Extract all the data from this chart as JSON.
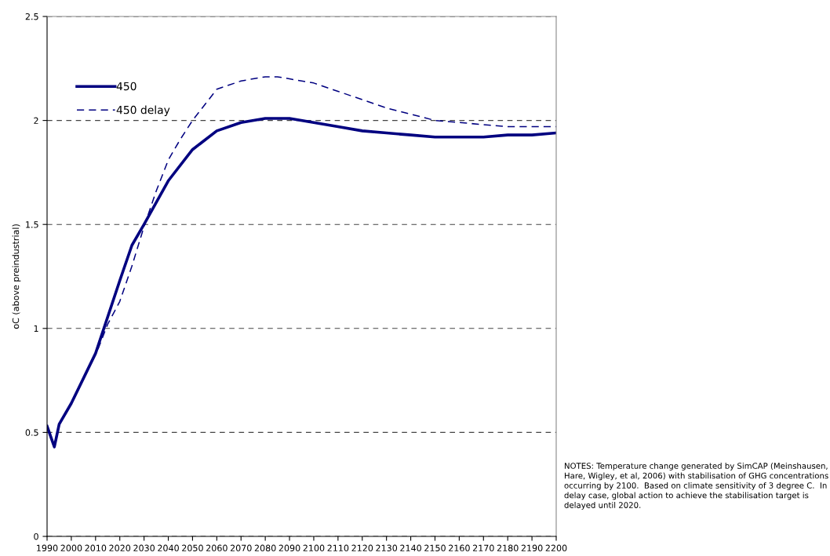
{
  "chart_data": {
    "type": "line",
    "ylabel": "oC (above preindustrial)",
    "xlim": [
      1990,
      2200
    ],
    "xticks": [
      1990,
      2000,
      2010,
      2020,
      2030,
      2040,
      2050,
      2060,
      2070,
      2080,
      2090,
      2100,
      2110,
      2120,
      2130,
      2140,
      2150,
      2160,
      2170,
      2180,
      2190,
      2200
    ],
    "ylim": [
      0,
      2.5
    ],
    "yticks": [
      0,
      0.5,
      1,
      1.5,
      2,
      2.5
    ],
    "grid": "y",
    "legend": "top left",
    "series": [
      {
        "name": "450",
        "color": "#000080",
        "line_style": "solid",
        "x": [
          1990,
          1993,
          1995,
          2000,
          2010,
          2020,
          2025,
          2030,
          2040,
          2050,
          2060,
          2070,
          2080,
          2090,
          2100,
          2110,
          2120,
          2130,
          2140,
          2150,
          2160,
          2170,
          2180,
          2190,
          2200
        ],
        "values": [
          0.53,
          0.43,
          0.54,
          0.64,
          0.88,
          1.23,
          1.4,
          1.5,
          1.71,
          1.86,
          1.95,
          1.99,
          2.01,
          2.01,
          1.99,
          1.97,
          1.95,
          1.94,
          1.93,
          1.92,
          1.92,
          1.92,
          1.93,
          1.93,
          1.94
        ]
      },
      {
        "name": "450 delay",
        "color": "#000080",
        "line_style": "dashed",
        "x": [
          2011,
          2015,
          2020,
          2025,
          2030,
          2035,
          2040,
          2045,
          2050,
          2060,
          2070,
          2080,
          2085,
          2090,
          2100,
          2110,
          2120,
          2130,
          2140,
          2150,
          2160,
          2170,
          2180,
          2190,
          2200
        ],
        "values": [
          0.9,
          1.02,
          1.13,
          1.3,
          1.49,
          1.66,
          1.81,
          1.91,
          2.0,
          2.15,
          2.19,
          2.21,
          2.21,
          2.2,
          2.18,
          2.14,
          2.1,
          2.06,
          2.03,
          2.0,
          1.99,
          1.98,
          1.97,
          1.97,
          1.97
        ]
      }
    ],
    "annotations": [
      "NOTES: Temperature change generated by SimCAP (Meinshausen, Hare, Wigley, et al, 2006) with stabilisation of GHG concentrations occurring by 2100.  Based on climate sensitivity of 3 degree C.  In delay case, global action to achieve the stabilisation target is delayed until 2020."
    ]
  }
}
